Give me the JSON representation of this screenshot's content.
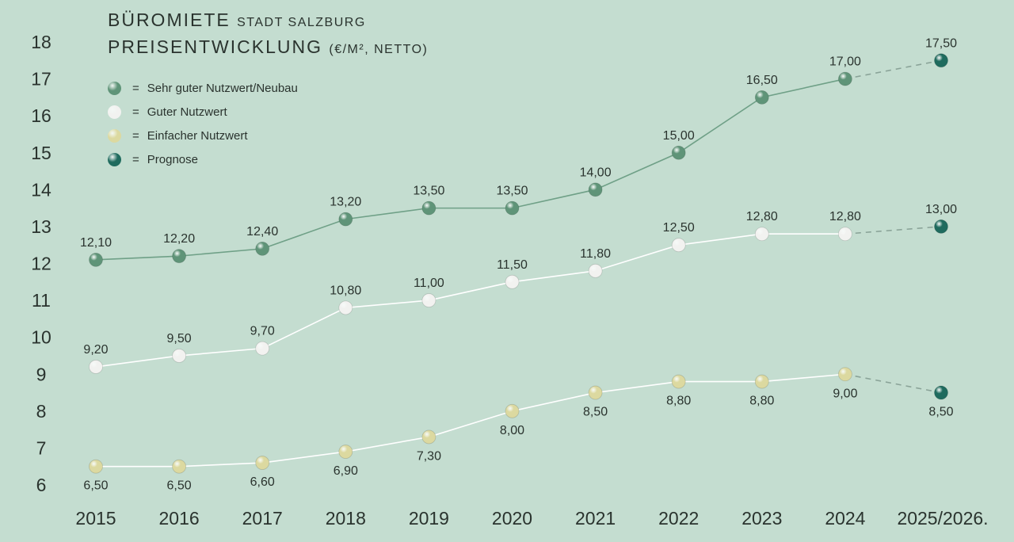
{
  "chart_data": {
    "type": "line",
    "title": "BÜROMIETE",
    "title_suffix": "STADT SALZBURG",
    "subtitle": "PREISENTWICKLUNG",
    "subtitle_suffix": "(€/M², NETTO)",
    "categories": [
      "2015",
      "2016",
      "2017",
      "2018",
      "2019",
      "2020",
      "2021",
      "2022",
      "2023",
      "2024",
      "2025/2026."
    ],
    "ylim": [
      6,
      18
    ],
    "yticks": [
      6,
      7,
      8,
      9,
      10,
      11,
      12,
      13,
      14,
      15,
      16,
      17,
      18
    ],
    "grid": false,
    "legend_position": "top-left",
    "series": [
      {
        "name": "Sehr guter Nutzwert/Neubau",
        "color": "#5f9478",
        "line": "#6fa087",
        "label_pos": "above",
        "values": [
          12.1,
          12.2,
          12.4,
          13.2,
          13.5,
          13.5,
          14.0,
          15.0,
          16.5,
          17.0,
          17.5
        ],
        "labels": [
          "12,10",
          "12,20",
          "12,40",
          "13,20",
          "13,50",
          "13,50",
          "14,00",
          "15,00",
          "16,50",
          "17,00",
          "17,50"
        ]
      },
      {
        "name": "Guter Nutzwert",
        "color": "#f2f2f0",
        "line": "#ffffff",
        "label_pos": "above",
        "values": [
          9.2,
          9.5,
          9.7,
          10.8,
          11.0,
          11.5,
          11.8,
          12.5,
          12.8,
          12.8,
          13.0
        ],
        "labels": [
          "9,20",
          "9,50",
          "9,70",
          "10,80",
          "11,00",
          "11,50",
          "11,80",
          "12,50",
          "12,80",
          "12,80",
          "13,00"
        ]
      },
      {
        "name": "Einfacher Nutzwert",
        "color": "#dcd9a0",
        "line": "#ffffff",
        "label_pos": "below",
        "values": [
          6.5,
          6.5,
          6.6,
          6.9,
          7.3,
          8.0,
          8.5,
          8.8,
          8.8,
          9.0,
          8.5
        ],
        "labels": [
          "6,50",
          "6,50",
          "6,60",
          "6,90",
          "7,30",
          "8,00",
          "8,50",
          "8,80",
          "8,80",
          "9,00",
          "8,50"
        ]
      }
    ],
    "forecast": {
      "name": "Prognose",
      "color": "#1f6b5e",
      "dash_color": "#8aa398",
      "index": 10
    },
    "legend": [
      {
        "symbol": "=",
        "label": "Sehr guter Nutzwert/Neubau",
        "color": "#5f9478"
      },
      {
        "symbol": "=",
        "label": "Guter Nutzwert",
        "color": "#f2f2f0"
      },
      {
        "symbol": "=",
        "label": "Einfacher Nutzwert",
        "color": "#dcd9a0"
      },
      {
        "symbol": "=",
        "label": "Prognose",
        "color": "#1f6b5e"
      }
    ]
  }
}
